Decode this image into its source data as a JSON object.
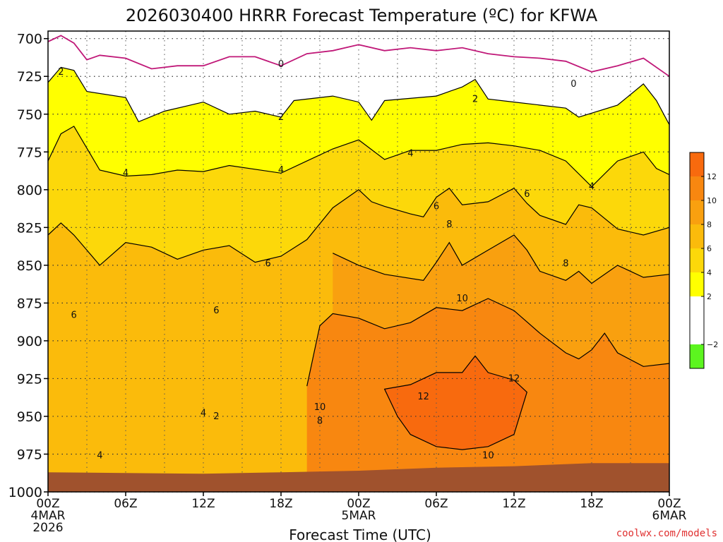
{
  "chart_data": {
    "type": "heatmap",
    "title": "2026030400 HRRR Forecast Temperature (ºC) for KFWA",
    "xlabel": "Forecast Time (UTC)",
    "credit": "coolwx.com/models",
    "y_axis": {
      "unit": "hPa",
      "inverted": true,
      "ylim": [
        1000,
        695
      ],
      "ticks": [
        {
          "value": 700,
          "label": "700"
        },
        {
          "value": 725,
          "label": "725"
        },
        {
          "value": 750,
          "label": "750"
        },
        {
          "value": 775,
          "label": "775"
        },
        {
          "value": 800,
          "label": "800"
        },
        {
          "value": 825,
          "label": "825"
        },
        {
          "value": 850,
          "label": "850"
        },
        {
          "value": 875,
          "label": "875"
        },
        {
          "value": 900,
          "label": "900"
        },
        {
          "value": 925,
          "label": "925"
        },
        {
          "value": 950,
          "label": "950"
        },
        {
          "value": 975,
          "label": "975"
        },
        {
          "value": 1000,
          "label": "1000"
        }
      ]
    },
    "x_axis": {
      "unit": "forecast hour",
      "xlim": [
        0,
        48
      ],
      "ticks": [
        {
          "hour": 0,
          "lines": [
            "00Z",
            "4MAR",
            "2026"
          ]
        },
        {
          "hour": 6,
          "lines": [
            "06Z"
          ]
        },
        {
          "hour": 12,
          "lines": [
            "12Z"
          ]
        },
        {
          "hour": 18,
          "lines": [
            "18Z"
          ]
        },
        {
          "hour": 24,
          "lines": [
            "00Z",
            "5MAR"
          ]
        },
        {
          "hour": 30,
          "lines": [
            "06Z"
          ]
        },
        {
          "hour": 36,
          "lines": [
            "12Z"
          ]
        },
        {
          "hour": 42,
          "lines": [
            "18Z"
          ]
        },
        {
          "hour": 48,
          "lines": [
            "00Z",
            "6MAR"
          ]
        }
      ]
    },
    "grid": "dotted",
    "colorbar": {
      "bins": [
        {
          "min": -4,
          "max": -2,
          "color": "#5cf51f"
        },
        {
          "min": -2,
          "max": 2,
          "color": "#ffffff"
        },
        {
          "min": 2,
          "max": 4,
          "color": "#ffff00"
        },
        {
          "min": 4,
          "max": 6,
          "color": "#fcd80a"
        },
        {
          "min": 6,
          "max": 8,
          "color": "#fbbb0b"
        },
        {
          "min": 8,
          "max": 10,
          "color": "#f9a00f"
        },
        {
          "min": 10,
          "max": 12,
          "color": "#f88710"
        },
        {
          "min": 12,
          "max": 14,
          "color": "#f86a0e"
        }
      ],
      "labels": [
        {
          "value": -2,
          "label": "−2"
        },
        {
          "value": 2,
          "label": "2"
        },
        {
          "value": 4,
          "label": "4"
        },
        {
          "value": 6,
          "label": "6"
        },
        {
          "value": 8,
          "label": "8"
        },
        {
          "value": 10,
          "label": "10"
        },
        {
          "value": 12,
          "label": "12"
        }
      ]
    },
    "ground_color": "#a0522d",
    "freezing_line_color": "#c01878",
    "contour_line_color": "#000000",
    "ground_surface": [
      [
        0,
        987
      ],
      [
        12,
        988
      ],
      [
        18,
        987
      ],
      [
        24,
        986
      ],
      [
        30,
        984
      ],
      [
        36,
        983
      ],
      [
        42,
        981
      ],
      [
        48,
        981
      ]
    ],
    "isotherms": [
      {
        "value": 2,
        "line": [
          [
            0,
            729
          ],
          [
            1,
            719
          ],
          [
            2,
            721
          ],
          [
            3,
            735
          ],
          [
            6,
            739
          ],
          [
            7,
            755
          ],
          [
            9,
            748
          ],
          [
            12,
            742
          ],
          [
            14,
            750
          ],
          [
            16,
            748
          ],
          [
            18,
            752
          ],
          [
            19,
            741
          ],
          [
            22,
            738
          ],
          [
            24,
            742
          ],
          [
            25,
            754
          ],
          [
            26,
            741
          ],
          [
            30,
            738
          ],
          [
            31,
            735
          ],
          [
            32,
            732
          ],
          [
            33,
            727
          ],
          [
            34,
            740
          ],
          [
            36,
            742
          ],
          [
            40,
            746
          ],
          [
            41,
            752
          ],
          [
            44,
            744
          ],
          [
            46,
            730
          ],
          [
            47,
            741
          ],
          [
            48,
            757
          ]
        ]
      },
      {
        "value": 4,
        "line": [
          [
            0,
            781
          ],
          [
            1,
            763
          ],
          [
            2,
            758
          ],
          [
            4,
            787
          ],
          [
            6,
            791
          ],
          [
            8,
            790
          ],
          [
            10,
            787
          ],
          [
            12,
            788
          ],
          [
            14,
            784
          ],
          [
            18,
            789
          ],
          [
            20,
            781
          ],
          [
            22,
            773
          ],
          [
            24,
            767
          ],
          [
            26,
            780
          ],
          [
            28,
            774
          ],
          [
            30,
            774
          ],
          [
            32,
            770
          ],
          [
            34,
            769
          ],
          [
            36,
            771
          ],
          [
            38,
            774
          ],
          [
            40,
            781
          ],
          [
            42,
            798
          ],
          [
            44,
            781
          ],
          [
            46,
            775
          ],
          [
            47,
            786
          ],
          [
            48,
            790
          ]
        ]
      },
      {
        "value": 6,
        "line": [
          [
            0,
            830
          ],
          [
            1,
            822
          ],
          [
            2,
            830
          ],
          [
            3,
            840
          ],
          [
            4,
            850
          ],
          [
            6,
            835
          ],
          [
            8,
            838
          ],
          [
            10,
            846
          ],
          [
            12,
            840
          ],
          [
            14,
            837
          ],
          [
            16,
            848
          ],
          [
            18,
            844
          ],
          [
            20,
            833
          ],
          [
            22,
            812
          ],
          [
            24,
            800
          ],
          [
            25,
            808
          ],
          [
            26,
            811
          ],
          [
            28,
            816
          ],
          [
            29,
            818
          ],
          [
            30,
            805
          ],
          [
            31,
            799
          ],
          [
            32,
            810
          ],
          [
            34,
            808
          ],
          [
            36,
            799
          ],
          [
            37,
            809
          ],
          [
            38,
            817
          ],
          [
            40,
            823
          ],
          [
            41,
            810
          ],
          [
            42,
            812
          ],
          [
            44,
            826
          ],
          [
            46,
            830
          ],
          [
            48,
            825
          ]
        ]
      },
      {
        "value": 8,
        "line": [
          [
            22,
            842
          ],
          [
            24,
            850
          ],
          [
            26,
            856
          ],
          [
            29,
            860
          ],
          [
            30,
            848
          ],
          [
            31,
            835
          ],
          [
            32,
            850
          ],
          [
            34,
            840
          ],
          [
            36,
            830
          ],
          [
            37,
            840
          ],
          [
            38,
            854
          ],
          [
            40,
            860
          ],
          [
            41,
            854
          ],
          [
            42,
            862
          ],
          [
            44,
            850
          ],
          [
            46,
            858
          ],
          [
            48,
            856
          ]
        ]
      },
      {
        "value": 10,
        "line": [
          [
            20,
            930
          ],
          [
            21,
            890
          ],
          [
            22,
            882
          ],
          [
            24,
            885
          ],
          [
            26,
            892
          ],
          [
            28,
            888
          ],
          [
            30,
            878
          ],
          [
            32,
            880
          ],
          [
            34,
            872
          ],
          [
            36,
            880
          ],
          [
            38,
            895
          ],
          [
            40,
            908
          ],
          [
            41,
            912
          ],
          [
            42,
            906
          ],
          [
            43,
            895
          ],
          [
            44,
            908
          ],
          [
            46,
            917
          ],
          [
            48,
            915
          ]
        ]
      },
      {
        "value": 12,
        "line": [
          [
            26,
            932
          ],
          [
            28,
            929
          ],
          [
            30,
            921
          ],
          [
            32,
            921
          ],
          [
            33,
            910
          ],
          [
            34,
            921
          ],
          [
            36,
            926
          ],
          [
            37,
            934
          ],
          [
            36,
            962
          ],
          [
            34,
            970
          ],
          [
            32,
            972
          ],
          [
            30,
            970
          ],
          [
            28,
            962
          ],
          [
            27,
            950
          ],
          [
            26,
            932
          ]
        ]
      }
    ],
    "freezing_line": [
      [
        0,
        702
      ],
      [
        1,
        698
      ],
      [
        2,
        703
      ],
      [
        3,
        714
      ],
      [
        4,
        711
      ],
      [
        6,
        713
      ],
      [
        8,
        720
      ],
      [
        10,
        718
      ],
      [
        12,
        718
      ],
      [
        14,
        712
      ],
      [
        16,
        712
      ],
      [
        18,
        718
      ],
      [
        20,
        710
      ],
      [
        22,
        708
      ],
      [
        24,
        704
      ],
      [
        26,
        708
      ],
      [
        28,
        706
      ],
      [
        30,
        708
      ],
      [
        32,
        706
      ],
      [
        34,
        710
      ],
      [
        36,
        712
      ],
      [
        38,
        713
      ],
      [
        40,
        715
      ],
      [
        42,
        722
      ],
      [
        44,
        718
      ],
      [
        46,
        713
      ],
      [
        48,
        725
      ]
    ],
    "contour_labels": [
      {
        "x": 1.0,
        "y": 722,
        "text": "2"
      },
      {
        "x": 18.0,
        "y": 717,
        "text": "0"
      },
      {
        "x": 18.0,
        "y": 752,
        "text": "2"
      },
      {
        "x": 33.0,
        "y": 740,
        "text": "2"
      },
      {
        "x": 40.6,
        "y": 730,
        "text": "0"
      },
      {
        "x": 6.0,
        "y": 789,
        "text": "4"
      },
      {
        "x": 18.0,
        "y": 787,
        "text": "4"
      },
      {
        "x": 28.0,
        "y": 776,
        "text": "4"
      },
      {
        "x": 42.0,
        "y": 798,
        "text": "4"
      },
      {
        "x": 30.0,
        "y": 811,
        "text": "6"
      },
      {
        "x": 37.0,
        "y": 803,
        "text": "6"
      },
      {
        "x": 17.0,
        "y": 849,
        "text": "6"
      },
      {
        "x": 2.0,
        "y": 883,
        "text": "6"
      },
      {
        "x": 13.0,
        "y": 880,
        "text": "6"
      },
      {
        "x": 31.0,
        "y": 823,
        "text": "8"
      },
      {
        "x": 40.0,
        "y": 849,
        "text": "8"
      },
      {
        "x": 32.0,
        "y": 872,
        "text": "10"
      },
      {
        "x": 21.0,
        "y": 944,
        "text": "10"
      },
      {
        "x": 21.0,
        "y": 953,
        "text": "8"
      },
      {
        "x": 34.0,
        "y": 976,
        "text": "10"
      },
      {
        "x": 29.0,
        "y": 937,
        "text": "12"
      },
      {
        "x": 36.0,
        "y": 925,
        "text": "12"
      },
      {
        "x": 12.0,
        "y": 948,
        "text": "4"
      },
      {
        "x": 13.0,
        "y": 950,
        "text": "2"
      },
      {
        "x": 4.0,
        "y": 976,
        "text": "4"
      }
    ]
  }
}
